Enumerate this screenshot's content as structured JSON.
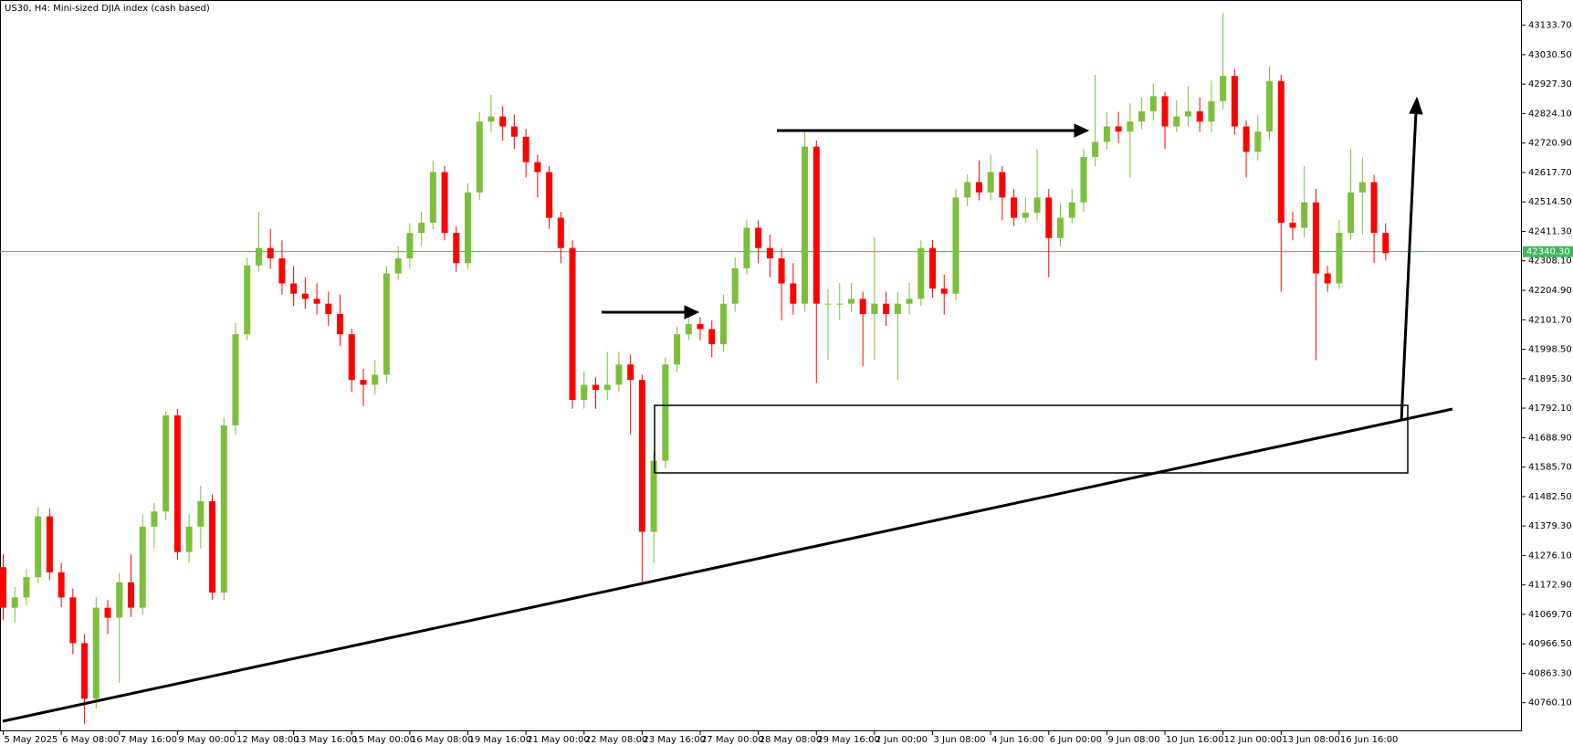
{
  "chart_data": {
    "type": "candlestick",
    "title": "US30, H4:  Mini-sized DJIA index (cash based)",
    "up_color": "#7cbf3a",
    "down_color": "#ff0000",
    "ylim": [
      40660,
      43222
    ],
    "yticks": [
      {
        "value": 43133.7,
        "label": "43133.70"
      },
      {
        "value": 43030.5,
        "label": "43030.50"
      },
      {
        "value": 42927.3,
        "label": "42927.30"
      },
      {
        "value": 42824.1,
        "label": "42824.10"
      },
      {
        "value": 42720.9,
        "label": "42720.90"
      },
      {
        "value": 42617.7,
        "label": "42617.70"
      },
      {
        "value": 42514.5,
        "label": "42514.50"
      },
      {
        "value": 42411.3,
        "label": "42411.30"
      },
      {
        "value": 42308.1,
        "label": "42308.10"
      },
      {
        "value": 42204.9,
        "label": "42204.90"
      },
      {
        "value": 42101.7,
        "label": "42101.70"
      },
      {
        "value": 41998.5,
        "label": "41998.50"
      },
      {
        "value": 41895.3,
        "label": "41895.30"
      },
      {
        "value": 41792.1,
        "label": "41792.10"
      },
      {
        "value": 41688.9,
        "label": "41688.90"
      },
      {
        "value": 41585.7,
        "label": "41585.70"
      },
      {
        "value": 41482.5,
        "label": "41482.50"
      },
      {
        "value": 41379.3,
        "label": "41379.30"
      },
      {
        "value": 41276.1,
        "label": "41276.10"
      },
      {
        "value": 41172.9,
        "label": "41172.90"
      },
      {
        "value": 41069.7,
        "label": "41069.70"
      },
      {
        "value": 40966.5,
        "label": "40966.50"
      },
      {
        "value": 40863.3,
        "label": "40863.30"
      },
      {
        "value": 40760.1,
        "label": "40760.10"
      }
    ],
    "current_price": {
      "value": 42340.3,
      "label": "42340.30",
      "color": "#3cb95c"
    },
    "categories": [
      "5 May 2025",
      null,
      null,
      null,
      null,
      "6 May 08:00",
      null,
      null,
      null,
      null,
      "7 May 16:00",
      null,
      null,
      null,
      null,
      "9 May 00:00",
      null,
      null,
      null,
      null,
      "12 May 08:00",
      null,
      null,
      null,
      null,
      "13 May 16:00",
      null,
      null,
      null,
      null,
      "15 May 00:00",
      null,
      null,
      null,
      null,
      "16 May 08:00",
      null,
      null,
      null,
      null,
      "19 May 16:00",
      null,
      null,
      null,
      null,
      "21 May 00:00",
      null,
      null,
      null,
      null,
      "22 May 08:00",
      null,
      null,
      null,
      null,
      "23 May 16:00",
      null,
      null,
      null,
      null,
      "27 May 00:00",
      null,
      null,
      null,
      null,
      "28 May 08:00",
      null,
      null,
      null,
      null,
      "29 May 16:00",
      null,
      null,
      null,
      null,
      "2 Jun 00:00",
      null,
      null,
      null,
      null,
      "3 Jun 08:00",
      null,
      null,
      null,
      null,
      "4 Jun 16:00",
      null,
      null,
      null,
      null,
      "6 Jun 00:00",
      null,
      null,
      null,
      null,
      "9 Jun 08:00",
      null,
      null,
      null,
      null,
      "10 Jun 16:00",
      null,
      null,
      null,
      null,
      "12 Jun 00:00",
      null,
      null,
      null,
      null,
      "13 Jun 08:00",
      null,
      null,
      null,
      null,
      "16 Jun 16:00",
      null,
      null,
      null,
      null
    ],
    "open": [
      41235,
      41093,
      41129,
      41200,
      41413,
      41217,
      41129,
      40969,
      40774,
      41093,
      41058,
      41182,
      41093,
      41377,
      41430,
      41767,
      41288,
      41377,
      41466,
      41146,
      41732,
      42051,
      42292,
      42353,
      42317,
      42229,
      42193,
      42175,
      42158,
      42122,
      42051,
      41891,
      41874,
      41909,
      42264,
      42317,
      42406,
      42442,
      42619,
      42406,
      42300,
      42548,
      42796,
      42814,
      42779,
      42743,
      42654,
      42619,
      42459,
      42353,
      41821,
      41874,
      41856,
      41874,
      41945,
      41891,
      41359,
      41608,
      41945,
      42051,
      42087,
      42069,
      42016,
      42158,
      42282,
      42424,
      42353,
      42317,
      42229,
      42158,
      42708,
      42158,
      42158,
      42158,
      42175,
      42122,
      42158,
      42122,
      42158,
      42175,
      42353,
      42211,
      42193,
      42530,
      42584,
      42548,
      42619,
      42530,
      42459,
      42477,
      42530,
      42388,
      42459,
      42513,
      42672,
      42725,
      42779,
      42761,
      42796,
      42832,
      42885,
      42779,
      42814,
      42832,
      42796,
      42868,
      42956,
      42779,
      42690,
      42761,
      42938,
      42442,
      42424,
      42513,
      42264,
      42229,
      42406,
      42548,
      42584,
      42406
    ],
    "high": [
      41280,
      41165,
      41230,
      41445,
      41440,
      41250,
      41160,
      41000,
      41130,
      41120,
      41215,
      41280,
      41420,
      41460,
      41780,
      41790,
      41420,
      41520,
      41490,
      41760,
      42090,
      42320,
      42480,
      42420,
      42380,
      42290,
      42250,
      42230,
      42200,
      42190,
      42070,
      41930,
      41960,
      42290,
      42360,
      42440,
      42480,
      42660,
      42640,
      42430,
      42580,
      42830,
      42890,
      42850,
      42820,
      42770,
      42680,
      42640,
      42480,
      42380,
      41920,
      41900,
      41990,
      41990,
      41980,
      41910,
      41640,
      41970,
      42080,
      42120,
      42110,
      42100,
      42190,
      42320,
      42450,
      42450,
      42400,
      42350,
      42300,
      42761,
      42730,
      42210,
      42230,
      42230,
      42200,
      42390,
      42200,
      42200,
      42230,
      42380,
      42380,
      42260,
      42560,
      42610,
      42660,
      42680,
      42640,
      42560,
      42530,
      42700,
      42560,
      42510,
      42560,
      42700,
      42960,
      42830,
      42830,
      42860,
      42880,
      42930,
      42900,
      42870,
      42920,
      42880,
      42940,
      43176,
      42980,
      42800,
      42820,
      42990,
      42960,
      42480,
      42640,
      42560,
      42290,
      42450,
      42700,
      42670,
      42610,
      42440
    ],
    "low": [
      41050,
      41040,
      41100,
      41180,
      41190,
      41095,
      40930,
      40685,
      40740,
      41000,
      40830,
      41060,
      41070,
      41300,
      41400,
      41260,
      41250,
      41300,
      41120,
      41120,
      41700,
      42030,
      42270,
      42280,
      42190,
      42150,
      42140,
      42120,
      42080,
      42010,
      41850,
      41800,
      41840,
      41880,
      42240,
      42280,
      42360,
      42420,
      42380,
      42270,
      42280,
      42520,
      42760,
      42730,
      42700,
      42600,
      42530,
      42420,
      42300,
      41790,
      41790,
      41790,
      41820,
      41850,
      41700,
      41182,
      41250,
      41580,
      41920,
      42030,
      42030,
      41970,
      41990,
      42130,
      42260,
      42300,
      42250,
      42100,
      42120,
      42130,
      41880,
      41960,
      42100,
      42130,
      41940,
      41960,
      42080,
      41890,
      42120,
      42150,
      42180,
      42120,
      42170,
      42500,
      42520,
      42520,
      42450,
      42430,
      42440,
      42450,
      42250,
      42360,
      42440,
      42480,
      42640,
      42700,
      42720,
      42600,
      42770,
      42800,
      42700,
      42760,
      42780,
      42760,
      42760,
      42840,
      42750,
      42600,
      42660,
      42730,
      42200,
      42380,
      42390,
      41960,
      42200,
      42210,
      42380,
      42400,
      42300,
      42310
    ],
    "close": [
      41093,
      41129,
      41200,
      41413,
      41217,
      41129,
      40969,
      40774,
      41093,
      41058,
      41182,
      41093,
      41377,
      41430,
      41767,
      41288,
      41377,
      41466,
      41146,
      41732,
      42051,
      42292,
      42353,
      42317,
      42229,
      42193,
      42175,
      42158,
      42122,
      42051,
      41891,
      41874,
      41909,
      42264,
      42317,
      42406,
      42442,
      42619,
      42406,
      42300,
      42548,
      42796,
      42814,
      42779,
      42743,
      42654,
      42619,
      42459,
      42353,
      41821,
      41874,
      41856,
      41874,
      41945,
      41891,
      41359,
      41608,
      41945,
      42051,
      42087,
      42069,
      42016,
      42158,
      42282,
      42424,
      42353,
      42317,
      42229,
      42158,
      42708,
      42158,
      42158,
      42158,
      42175,
      42122,
      42158,
      42122,
      42158,
      42175,
      42353,
      42211,
      42193,
      42530,
      42584,
      42548,
      42619,
      42530,
      42459,
      42477,
      42530,
      42388,
      42459,
      42513,
      42672,
      42725,
      42779,
      42761,
      42796,
      42832,
      42885,
      42779,
      42814,
      42832,
      42796,
      42868,
      42956,
      42779,
      42690,
      42761,
      42938,
      42442,
      42424,
      42513,
      42264,
      42229,
      42406,
      42548,
      42584,
      42406,
      42335
    ]
  }
}
